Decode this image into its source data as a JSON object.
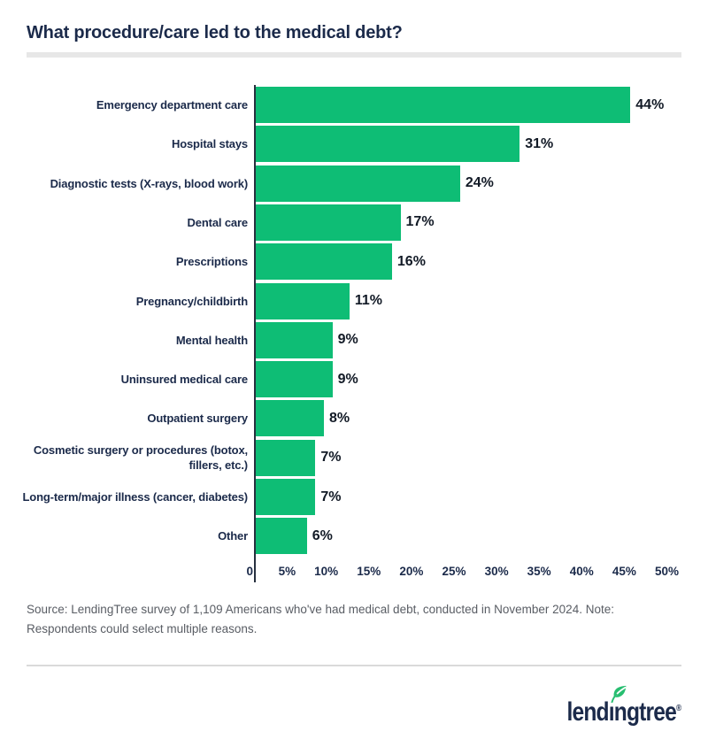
{
  "header": {
    "title": "What procedure/care led to the medical debt?"
  },
  "chart_data": {
    "type": "bar",
    "orientation": "horizontal",
    "title": "What procedure/care led to the medical debt?",
    "categories": [
      "Emergency department care",
      "Hospital stays",
      "Diagnostic tests (X-rays, blood work)",
      "Dental care",
      "Prescriptions",
      "Pregnancy/childbirth",
      "Mental health",
      "Uninsured medical care",
      "Outpatient surgery",
      "Cosmetic surgery or procedures (botox, fillers, etc.)",
      "Long-term/major illness (cancer, diabetes)",
      "Other"
    ],
    "values": [
      44,
      31,
      24,
      17,
      16,
      11,
      9,
      9,
      8,
      7,
      7,
      6
    ],
    "value_labels": [
      "44%",
      "31%",
      "24%",
      "17%",
      "16%",
      "11%",
      "9%",
      "9%",
      "8%",
      "7%",
      "7%",
      "6%"
    ],
    "unit": "%",
    "xlim": [
      0,
      50
    ],
    "x_ticks": {
      "values": [
        0,
        5,
        10,
        15,
        20,
        25,
        30,
        35,
        40,
        45,
        50
      ],
      "labels": [
        "0",
        "5%",
        "10%",
        "15%",
        "20%",
        "25%",
        "30%",
        "35%",
        "40%",
        "45%",
        "50%"
      ]
    },
    "grid": false,
    "legend": null,
    "bar_color": "#0EBD75"
  },
  "footer": {
    "source_note": "Source: LendingTree survey of 1,109 Americans who've had medical debt, conducted in November 2024. Note: Respondents could select multiple reasons.",
    "logo": {
      "text": "lendingtree",
      "registered_mark": "®"
    }
  },
  "colors": {
    "bar_green": "#0EBD75",
    "leaf_green": "#27BE70",
    "navy": "#1B2A4A",
    "value_text": "#121A26",
    "source_text": "#595D64",
    "divider": "#E7E7E7",
    "axis_line": "#27303F"
  }
}
